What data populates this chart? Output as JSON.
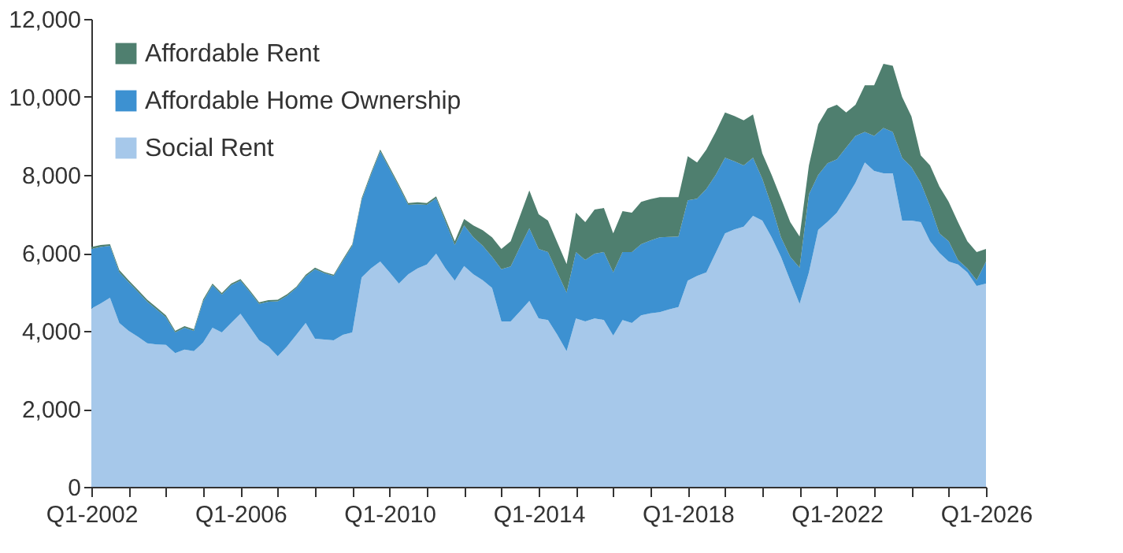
{
  "chart_data": {
    "type": "area",
    "stacked": true,
    "legend": "top left",
    "grid": false,
    "categories": [
      "Q1-2002",
      null,
      null,
      null,
      null,
      null,
      null,
      null,
      null,
      null,
      null,
      null,
      null,
      null,
      null,
      null,
      "Q1-2006",
      null,
      null,
      null,
      null,
      null,
      null,
      null,
      null,
      null,
      null,
      null,
      null,
      null,
      null,
      null,
      "Q1-2010",
      null,
      null,
      null,
      null,
      null,
      null,
      null,
      null,
      null,
      null,
      null,
      null,
      null,
      null,
      null,
      "Q1-2014",
      null,
      null,
      null,
      null,
      null,
      null,
      null,
      null,
      null,
      null,
      null,
      null,
      null,
      null,
      null,
      "Q1-2018",
      null,
      null,
      null,
      null,
      null,
      null,
      null,
      null,
      null,
      null,
      null,
      null,
      null,
      null,
      null,
      "Q1-2022",
      null,
      null,
      null,
      null,
      null,
      null,
      null,
      null,
      null,
      null,
      null,
      null,
      null,
      null,
      null,
      "Q1-2026"
    ],
    "series": [
      {
        "name": "Social Rent",
        "color": "#a6c8ea",
        "values": [
          4570,
          4700,
          4850,
          4200,
          4000,
          3850,
          3680,
          3650,
          3640,
          3430,
          3520,
          3480,
          3700,
          4080,
          3960,
          4200,
          4440,
          4100,
          3760,
          3600,
          3350,
          3600,
          3900,
          4200,
          3800,
          3780,
          3760,
          3900,
          3960,
          5370,
          5600,
          5780,
          5500,
          5210,
          5450,
          5600,
          5700,
          5980,
          5600,
          5290,
          5660,
          5450,
          5300,
          5100,
          4240,
          4240,
          4500,
          4770,
          4320,
          4280,
          3900,
          3480,
          4320,
          4240,
          4320,
          4280,
          3880,
          4280,
          4200,
          4400,
          4450,
          4480,
          4550,
          4610,
          5290,
          5410,
          5500,
          6000,
          6500,
          6600,
          6670,
          6950,
          6830,
          6400,
          5900,
          5290,
          4690,
          5500,
          6590,
          6800,
          7030,
          7400,
          7800,
          8320,
          8100,
          8040,
          8040,
          6830,
          6830,
          6790,
          6300,
          6000,
          5780,
          5700,
          5500,
          5150,
          5210
        ]
      },
      {
        "name": "Affordable Home Ownership",
        "color": "#3d91d1",
        "values": [
          1530,
          1450,
          1330,
          1300,
          1250,
          1150,
          1070,
          900,
          710,
          530,
          560,
          520,
          1060,
          1090,
          970,
          970,
          850,
          900,
          930,
          1150,
          1410,
          1300,
          1200,
          1200,
          1780,
          1700,
          1650,
          1900,
          2220,
          1980,
          2400,
          2820,
          2650,
          2490,
          1780,
          1650,
          1530,
          1420,
          1200,
          910,
          1040,
          950,
          880,
          800,
          1340,
          1410,
          1650,
          1860,
          1780,
          1740,
          1600,
          1500,
          1700,
          1580,
          1660,
          1740,
          1620,
          1740,
          1820,
          1820,
          1870,
          1920,
          1860,
          1810,
          2060,
          1980,
          2140,
          2000,
          1940,
          1750,
          1570,
          1490,
          1070,
          800,
          500,
          610,
          930,
          2000,
          1410,
          1500,
          1370,
          1300,
          1200,
          780,
          900,
          1160,
          1060,
          1610,
          1370,
          1010,
          900,
          500,
          520,
          120,
          100,
          150,
          570
        ]
      },
      {
        "name": "Affordable Rent",
        "color": "#4f7f6f",
        "values": [
          50,
          50,
          40,
          60,
          50,
          50,
          50,
          50,
          50,
          40,
          40,
          40,
          50,
          40,
          40,
          40,
          40,
          40,
          40,
          40,
          40,
          40,
          30,
          40,
          40,
          30,
          30,
          40,
          40,
          50,
          50,
          50,
          50,
          50,
          50,
          50,
          50,
          50,
          80,
          100,
          170,
          300,
          400,
          500,
          520,
          650,
          800,
          970,
          890,
          810,
          770,
          730,
          1010,
          970,
          1130,
          1130,
          1000,
          1050,
          1010,
          1090,
          1060,
          1030,
          1020,
          1010,
          1130,
          930,
          1010,
          1100,
          1160,
          1160,
          1160,
          1110,
          650,
          800,
          1000,
          890,
          800,
          740,
          1300,
          1400,
          1400,
          900,
          800,
          1200,
          1300,
          1650,
          1700,
          1560,
          1300,
          700,
          1040,
          1200,
          1010,
          970,
          700,
          720,
          320
        ]
      }
    ],
    "ylim": [
      0,
      12000
    ],
    "yticks": [
      0,
      {
        "value": 2000,
        "label": "2,000"
      },
      {
        "value": 4000,
        "label": "4,000"
      },
      {
        "value": 6000,
        "label": "6,000"
      },
      {
        "value": 8000,
        "label": "8,000"
      },
      {
        "value": 10000,
        "label": "10,000"
      },
      {
        "value": 12000,
        "label": "12,000"
      }
    ]
  }
}
